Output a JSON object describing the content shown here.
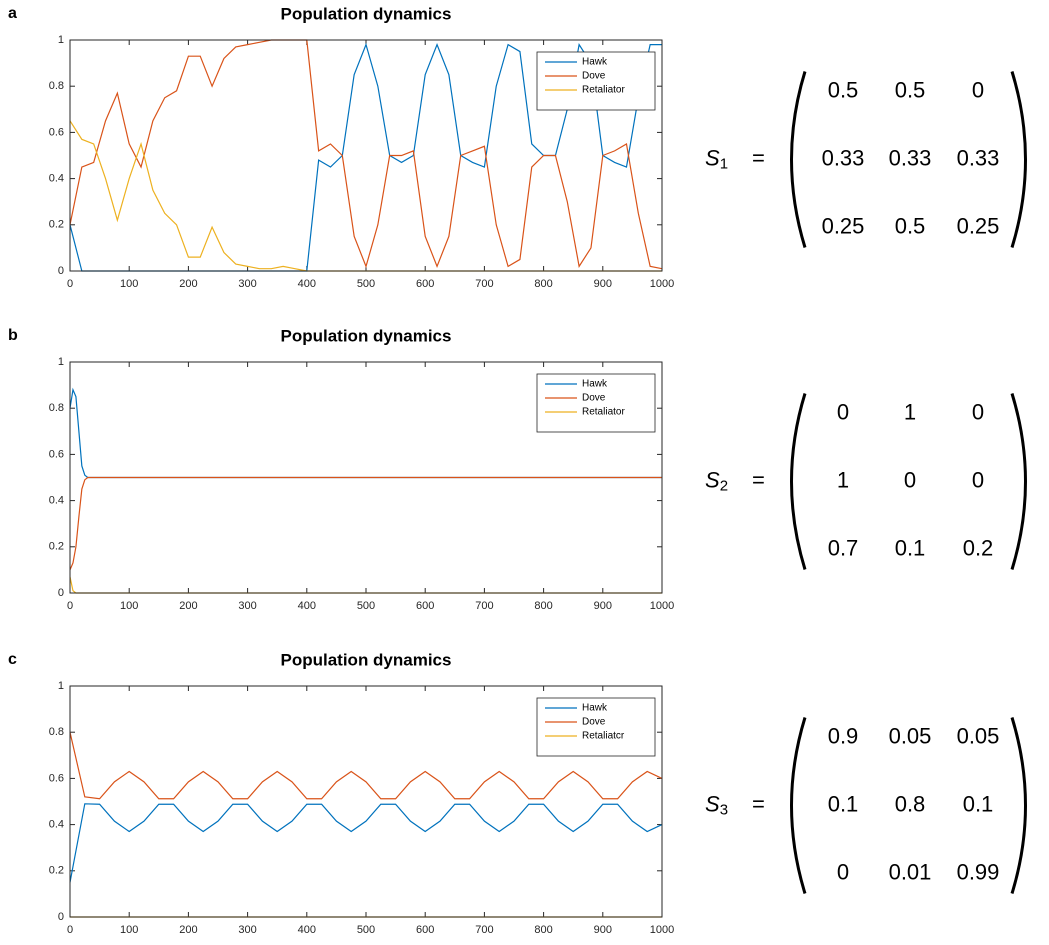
{
  "chart_data": [
    {
      "type": "line",
      "panel_label": "a",
      "title": "Population dynamics",
      "x": [
        0,
        20,
        40,
        60,
        80,
        100,
        120,
        140,
        160,
        180,
        200,
        220,
        240,
        260,
        280,
        300,
        320,
        340,
        360,
        380,
        400,
        420,
        440,
        460,
        480,
        500,
        520,
        540,
        560,
        580,
        600,
        620,
        640,
        660,
        680,
        700,
        720,
        740,
        760,
        780,
        800,
        820,
        840,
        860,
        880,
        900,
        920,
        940,
        960,
        980,
        1000
      ],
      "series": [
        {
          "name": "Hawk",
          "color": "#0072BD",
          "values": [
            0.2,
            0,
            0,
            0,
            0,
            0,
            0,
            0,
            0,
            0,
            0,
            0,
            0,
            0,
            0,
            0,
            0,
            0,
            0,
            0,
            0,
            0.48,
            0.45,
            0.5,
            0.85,
            0.98,
            0.8,
            0.5,
            0.47,
            0.5,
            0.85,
            0.98,
            0.85,
            0.5,
            0.47,
            0.45,
            0.8,
            0.98,
            0.95,
            0.55,
            0.5,
            0.5,
            0.7,
            0.98,
            0.9,
            0.5,
            0.47,
            0.45,
            0.75,
            0.98,
            0.98
          ]
        },
        {
          "name": "Dove",
          "color": "#D95319",
          "values": [
            0.2,
            0.45,
            0.47,
            0.65,
            0.77,
            0.55,
            0.45,
            0.65,
            0.75,
            0.78,
            0.93,
            0.93,
            0.8,
            0.92,
            0.97,
            0.98,
            0.99,
            1,
            1,
            1,
            1,
            0.52,
            0.55,
            0.5,
            0.15,
            0.02,
            0.2,
            0.5,
            0.5,
            0.52,
            0.15,
            0.02,
            0.15,
            0.5,
            0.52,
            0.54,
            0.2,
            0.02,
            0.05,
            0.45,
            0.5,
            0.5,
            0.3,
            0.02,
            0.1,
            0.5,
            0.52,
            0.55,
            0.25,
            0.02,
            0.01
          ]
        },
        {
          "name": "Retaliator",
          "color": "#EDB120",
          "values": [
            0.65,
            0.57,
            0.55,
            0.4,
            0.22,
            0.4,
            0.55,
            0.35,
            0.25,
            0.2,
            0.06,
            0.06,
            0.19,
            0.08,
            0.03,
            0.02,
            0.01,
            0.01,
            0.02,
            0.01,
            0,
            0,
            0,
            0,
            0,
            0,
            0,
            0,
            0,
            0,
            0,
            0,
            0,
            0,
            0,
            0,
            0,
            0,
            0,
            0,
            0,
            0,
            0,
            0,
            0,
            0,
            0,
            0,
            0,
            0,
            0
          ]
        }
      ],
      "xlim": [
        0,
        1000
      ],
      "xticks": [
        0,
        100,
        200,
        300,
        400,
        500,
        600,
        700,
        800,
        900,
        1000
      ],
      "ylim": [
        0,
        1
      ],
      "yticks": [
        0,
        0.2,
        0.4,
        0.6,
        0.8,
        1
      ],
      "legend": "upper right",
      "matrix": {
        "symbol": "S",
        "subscript": "1",
        "relation": "=",
        "rows": [
          [
            0.5,
            0.5,
            0
          ],
          [
            0.33,
            0.33,
            0.33
          ],
          [
            0.25,
            0.5,
            0.25
          ]
        ]
      }
    },
    {
      "type": "line",
      "panel_label": "b",
      "title": "Population dynamics",
      "x": [
        0,
        5,
        10,
        15,
        20,
        25,
        30,
        40,
        100,
        200,
        300,
        400,
        500,
        600,
        700,
        800,
        900,
        1000
      ],
      "series": [
        {
          "name": "Hawk",
          "color": "#0072BD",
          "values": [
            0.8,
            0.88,
            0.85,
            0.7,
            0.55,
            0.51,
            0.5,
            0.5,
            0.5,
            0.5,
            0.5,
            0.5,
            0.5,
            0.5,
            0.5,
            0.5,
            0.5,
            0.5
          ]
        },
        {
          "name": "Dove",
          "color": "#D95319",
          "values": [
            0.1,
            0.13,
            0.2,
            0.33,
            0.45,
            0.49,
            0.5,
            0.5,
            0.5,
            0.5,
            0.5,
            0.5,
            0.5,
            0.5,
            0.5,
            0.5,
            0.5,
            0.5
          ]
        },
        {
          "name": "Retaliator",
          "color": "#EDB120",
          "values": [
            0.07,
            0.01,
            0,
            0,
            0,
            0,
            0,
            0,
            0,
            0,
            0,
            0,
            0,
            0,
            0,
            0,
            0,
            0
          ]
        }
      ],
      "xlim": [
        0,
        1000
      ],
      "xticks": [
        0,
        100,
        200,
        300,
        400,
        500,
        600,
        700,
        800,
        900,
        1000
      ],
      "ylim": [
        0,
        1
      ],
      "yticks": [
        0,
        0.2,
        0.4,
        0.6,
        0.8,
        1
      ],
      "legend": "upper right",
      "matrix": {
        "symbol": "S",
        "subscript": "2",
        "relation": "=",
        "rows": [
          [
            0,
            1,
            0
          ],
          [
            1,
            0,
            0
          ],
          [
            0.7,
            0.1,
            0.2
          ]
        ]
      }
    },
    {
      "type": "line",
      "panel_label": "c",
      "title": "Population dynamics",
      "x": [
        0,
        25,
        50,
        75,
        100,
        125,
        150,
        175,
        200,
        225,
        250,
        275,
        300,
        325,
        350,
        375,
        400,
        425,
        450,
        475,
        500,
        525,
        550,
        575,
        600,
        625,
        650,
        675,
        700,
        725,
        750,
        775,
        800,
        825,
        850,
        875,
        900,
        925,
        950,
        975,
        1000
      ],
      "series": [
        {
          "name": "Hawk",
          "color": "#0072BD",
          "values": [
            0.15,
            0.49,
            0.488,
            0.415,
            0.37,
            0.415,
            0.488,
            0.488,
            0.415,
            0.37,
            0.415,
            0.488,
            0.488,
            0.415,
            0.37,
            0.415,
            0.488,
            0.488,
            0.415,
            0.37,
            0.415,
            0.488,
            0.488,
            0.415,
            0.37,
            0.415,
            0.488,
            0.488,
            0.415,
            0.37,
            0.415,
            0.488,
            0.488,
            0.415,
            0.37,
            0.415,
            0.488,
            0.488,
            0.415,
            0.37,
            0.4
          ]
        },
        {
          "name": "Dove",
          "color": "#D95319",
          "values": [
            0.8,
            0.52,
            0.512,
            0.585,
            0.63,
            0.585,
            0.512,
            0.512,
            0.585,
            0.63,
            0.585,
            0.512,
            0.512,
            0.585,
            0.63,
            0.585,
            0.512,
            0.512,
            0.585,
            0.63,
            0.585,
            0.512,
            0.512,
            0.585,
            0.63,
            0.585,
            0.512,
            0.512,
            0.585,
            0.63,
            0.585,
            0.512,
            0.512,
            0.585,
            0.63,
            0.585,
            0.512,
            0.512,
            0.585,
            0.63,
            0.6
          ]
        },
        {
          "name": "Retaliatcr",
          "color": "#EDB120",
          "values": [
            0,
            0,
            0,
            0,
            0,
            0,
            0,
            0,
            0,
            0,
            0,
            0,
            0,
            0,
            0,
            0,
            0,
            0,
            0,
            0,
            0,
            0,
            0,
            0,
            0,
            0,
            0,
            0,
            0,
            0,
            0,
            0,
            0,
            0,
            0,
            0,
            0,
            0,
            0,
            0,
            0
          ]
        }
      ],
      "xlim": [
        0,
        1000
      ],
      "xticks": [
        0,
        100,
        200,
        300,
        400,
        500,
        600,
        700,
        800,
        900,
        1000
      ],
      "ylim": [
        0,
        1
      ],
      "yticks": [
        0,
        0.2,
        0.4,
        0.6,
        0.8,
        1
      ],
      "legend": "upper right",
      "matrix": {
        "symbol": "S",
        "subscript": "3",
        "relation": "=",
        "rows": [
          [
            0.9,
            0.05,
            0.05
          ],
          [
            0.1,
            0.8,
            0.1
          ],
          [
            0,
            0.01,
            0.99
          ]
        ]
      }
    }
  ]
}
